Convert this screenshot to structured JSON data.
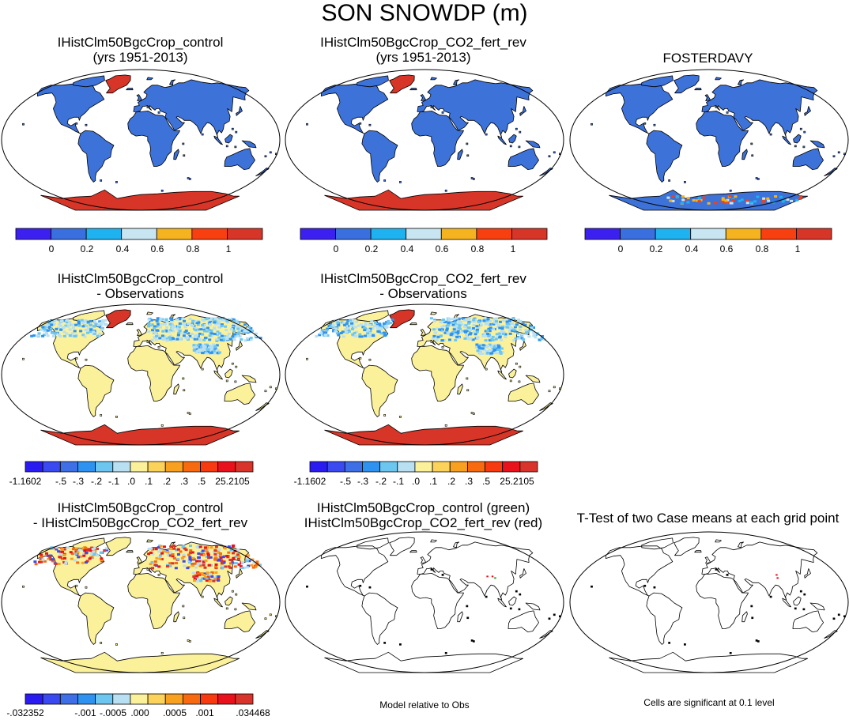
{
  "figure_title": "SON SNOWDP (m)",
  "colors": {
    "cb6": [
      "#3c20f0",
      "#3a6fe0",
      "#1fb2f0",
      "#c8e6f2",
      "#f5b320",
      "#f83f10",
      "#d73527"
    ],
    "cb13": [
      "#2a1cf0",
      "#3a49f0",
      "#3e6fe6",
      "#2e93f0",
      "#6cc6f0",
      "#b8e0f2",
      "#fbf19a",
      "#fcd35a",
      "#f8a020",
      "#f86a10",
      "#f83a10",
      "#e8111c",
      "#d9342c"
    ],
    "land_blue": "#3d72d9",
    "antarctic_red": "#d73527",
    "land_yellow": "#fbf19a",
    "land_lightblue": "#b8e0f2"
  },
  "panels": [
    {
      "title": "IHistClm50BgcCrop_control\n(yrs 1951-2013)",
      "style": "abs"
    },
    {
      "title": "IHistClm50BgcCrop_CO2_fert_rev\n(yrs 1951-2013)",
      "style": "abs"
    },
    {
      "title": "FOSTERDAVY",
      "style": "obs"
    },
    {
      "title": "IHistClm50BgcCrop_control\n- Observations",
      "style": "diff"
    },
    {
      "title": "IHistClm50BgcCrop_CO2_fert_rev\n- Observations",
      "style": "diff"
    },
    {
      "title": "IHistClm50BgcCrop_control\n- IHistClm50BgcCrop_CO2_fert_rev",
      "style": "casediff"
    },
    {
      "title": "IHistClm50BgcCrop_control (green)\nIHistClm50BgcCrop_CO2_fert_rev (red)",
      "style": "outline"
    },
    {
      "title": "T-Test of two Case means at each grid point",
      "style": "ttest"
    }
  ],
  "colorbars": {
    "abs_labels": [
      "0",
      "0.2",
      "0.4",
      "0.6",
      "0.8",
      "1"
    ],
    "diff_labels": [
      "-1.1602",
      "-.5",
      "-.3",
      "-.2",
      "-.1",
      ".0",
      ".1",
      ".2",
      ".3",
      ".5",
      "25.2105"
    ],
    "casediff_labels": [
      "-.032352",
      "-.001",
      "-.0005",
      ".000",
      ".0005",
      ".001",
      ".034468"
    ]
  },
  "notes": {
    "model_relative": "Model relative to Obs",
    "cells_significant": "Cells are significant at 0.1 level"
  }
}
